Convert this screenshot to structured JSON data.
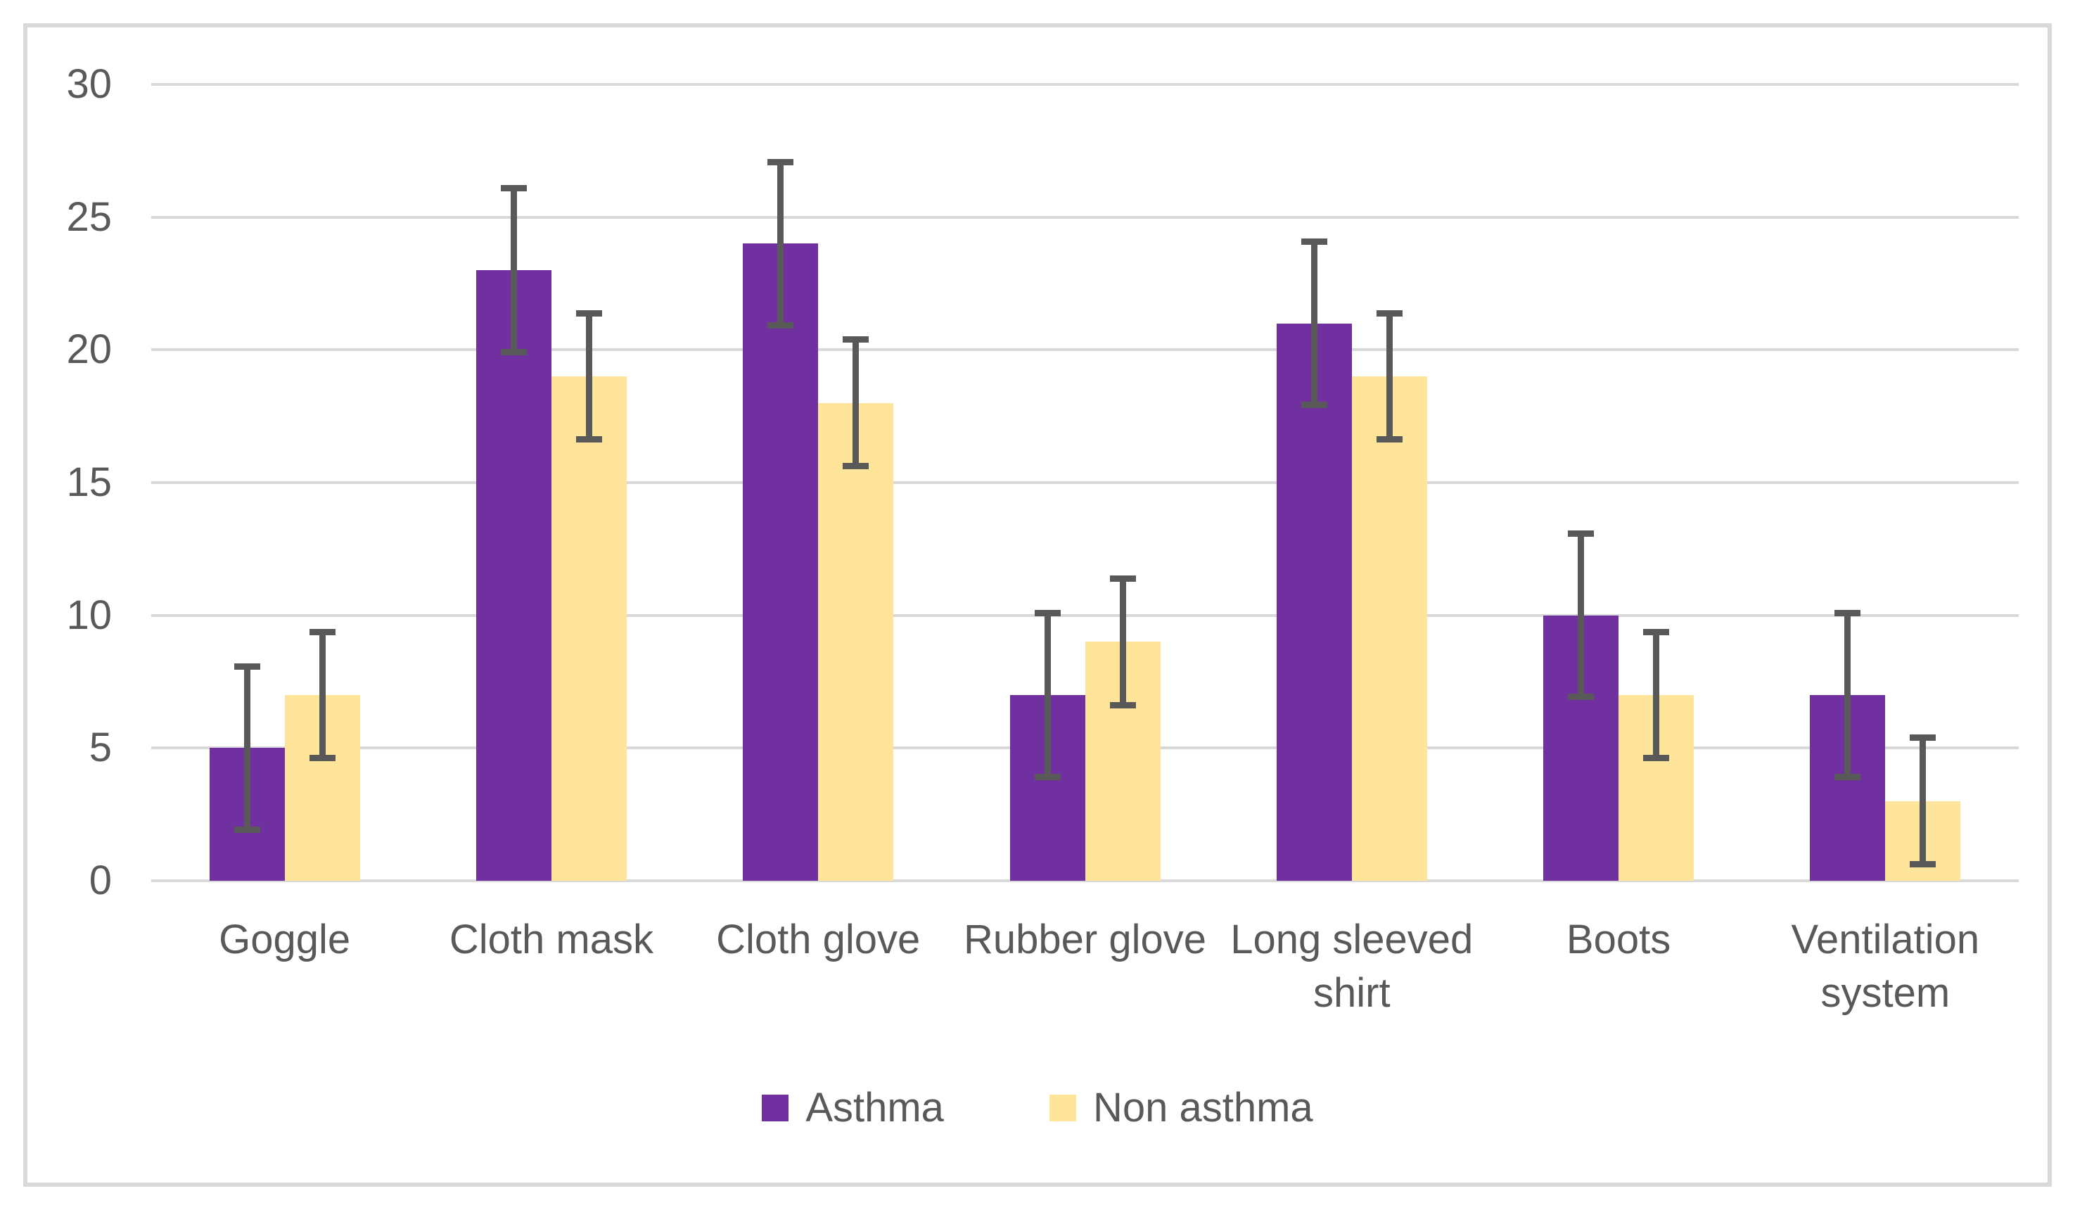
{
  "chart_data": {
    "type": "bar",
    "title": "",
    "categories": [
      "Goggle",
      "Cloth mask",
      "Cloth glove",
      "Rubber glove",
      "Long sleeved shirt",
      "Boots",
      "Ventilation system"
    ],
    "series": [
      {
        "name": "Asthma",
        "color": "#7030A0",
        "values": [
          5,
          23,
          24,
          7,
          21,
          10,
          7
        ],
        "error_plus_minus": [
          3.2,
          3.2,
          3.2,
          3.2,
          3.2,
          3.2,
          3.2
        ]
      },
      {
        "name": "Non asthma",
        "color": "#FFE599",
        "values": [
          7,
          19,
          18,
          9,
          19,
          7,
          3
        ],
        "error_plus_minus": [
          2.5,
          2.5,
          2.5,
          2.5,
          2.5,
          2.5,
          2.5
        ]
      }
    ],
    "xlabel": "",
    "ylabel": "",
    "ylim": [
      0,
      30
    ],
    "yticks": [
      0,
      5,
      10,
      15,
      20,
      25,
      30
    ],
    "grid": true,
    "legend_position": "bottom",
    "error_bar_color": "#595959"
  },
  "style_colors": {
    "gridline": "#D9D9D9",
    "frame_border": "#D9D9D9",
    "text": "#595959",
    "background": "#FFFFFF"
  }
}
